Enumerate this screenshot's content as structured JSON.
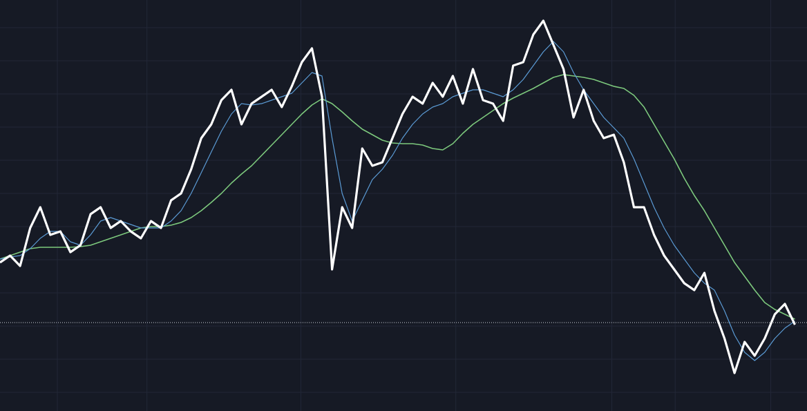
{
  "chart_data": {
    "type": "line",
    "xlim": [
      0,
      80.2
    ],
    "ylim": [
      0,
      595
    ],
    "xticks": [
      5.7,
      14.6,
      29.9,
      45.3,
      60.8,
      67.1,
      76.6
    ],
    "yticks": [
      27,
      75,
      123,
      171,
      219,
      267,
      315,
      363,
      411,
      459,
      507,
      555
    ],
    "grid": true,
    "price_line": 128,
    "price_line_color": "#d0d4dc",
    "series": [
      {
        "color": "#ffffff",
        "width": 3.2,
        "values": [
          215,
          225,
          210,
          265,
          295,
          255,
          260,
          230,
          240,
          285,
          295,
          265,
          275,
          260,
          250,
          275,
          265,
          305,
          315,
          350,
          395,
          415,
          450,
          465,
          415,
          445,
          455,
          465,
          440,
          470,
          505,
          525,
          455,
          205,
          295,
          265,
          380,
          355,
          360,
          395,
          430,
          455,
          445,
          475,
          455,
          485,
          445,
          495,
          450,
          445,
          420,
          500,
          505,
          545,
          565,
          530,
          495,
          425,
          465,
          420,
          395,
          400,
          360,
          295,
          295,
          255,
          225,
          205,
          185,
          175,
          200,
          145,
          105,
          55,
          100,
          80,
          105,
          140,
          155,
          125
        ]
      },
      {
        "color": "#5b9bd5",
        "width": 1.2,
        "values": [
          220,
          223,
          225,
          235,
          250,
          260,
          260,
          245,
          240,
          255,
          275,
          280,
          275,
          270,
          265,
          265,
          265,
          275,
          290,
          315,
          345,
          375,
          405,
          430,
          445,
          443,
          445,
          450,
          455,
          460,
          475,
          490,
          485,
          395,
          315,
          275,
          305,
          335,
          350,
          370,
          395,
          415,
          430,
          440,
          445,
          455,
          460,
          465,
          465,
          460,
          455,
          465,
          480,
          500,
          520,
          535,
          520,
          490,
          465,
          445,
          425,
          410,
          395,
          365,
          330,
          295,
          265,
          240,
          220,
          200,
          185,
          175,
          145,
          110,
          85,
          73,
          85,
          105,
          120,
          130
        ]
      },
      {
        "color": "#7dc97d",
        "width": 1.6,
        "values": [
          220,
          225,
          230,
          235,
          237,
          237,
          237,
          237,
          238,
          240,
          245,
          250,
          255,
          260,
          265,
          267,
          267,
          269,
          273,
          280,
          290,
          302,
          315,
          330,
          343,
          355,
          370,
          385,
          400,
          415,
          430,
          443,
          452,
          445,
          433,
          420,
          408,
          400,
          392,
          388,
          387,
          387,
          385,
          380,
          378,
          387,
          402,
          415,
          425,
          435,
          445,
          453,
          460,
          467,
          475,
          483,
          487,
          485,
          483,
          480,
          475,
          470,
          467,
          457,
          440,
          415,
          390,
          365,
          337,
          312,
          290,
          265,
          240,
          215,
          195,
          175,
          157,
          147,
          140,
          133
        ]
      }
    ]
  }
}
